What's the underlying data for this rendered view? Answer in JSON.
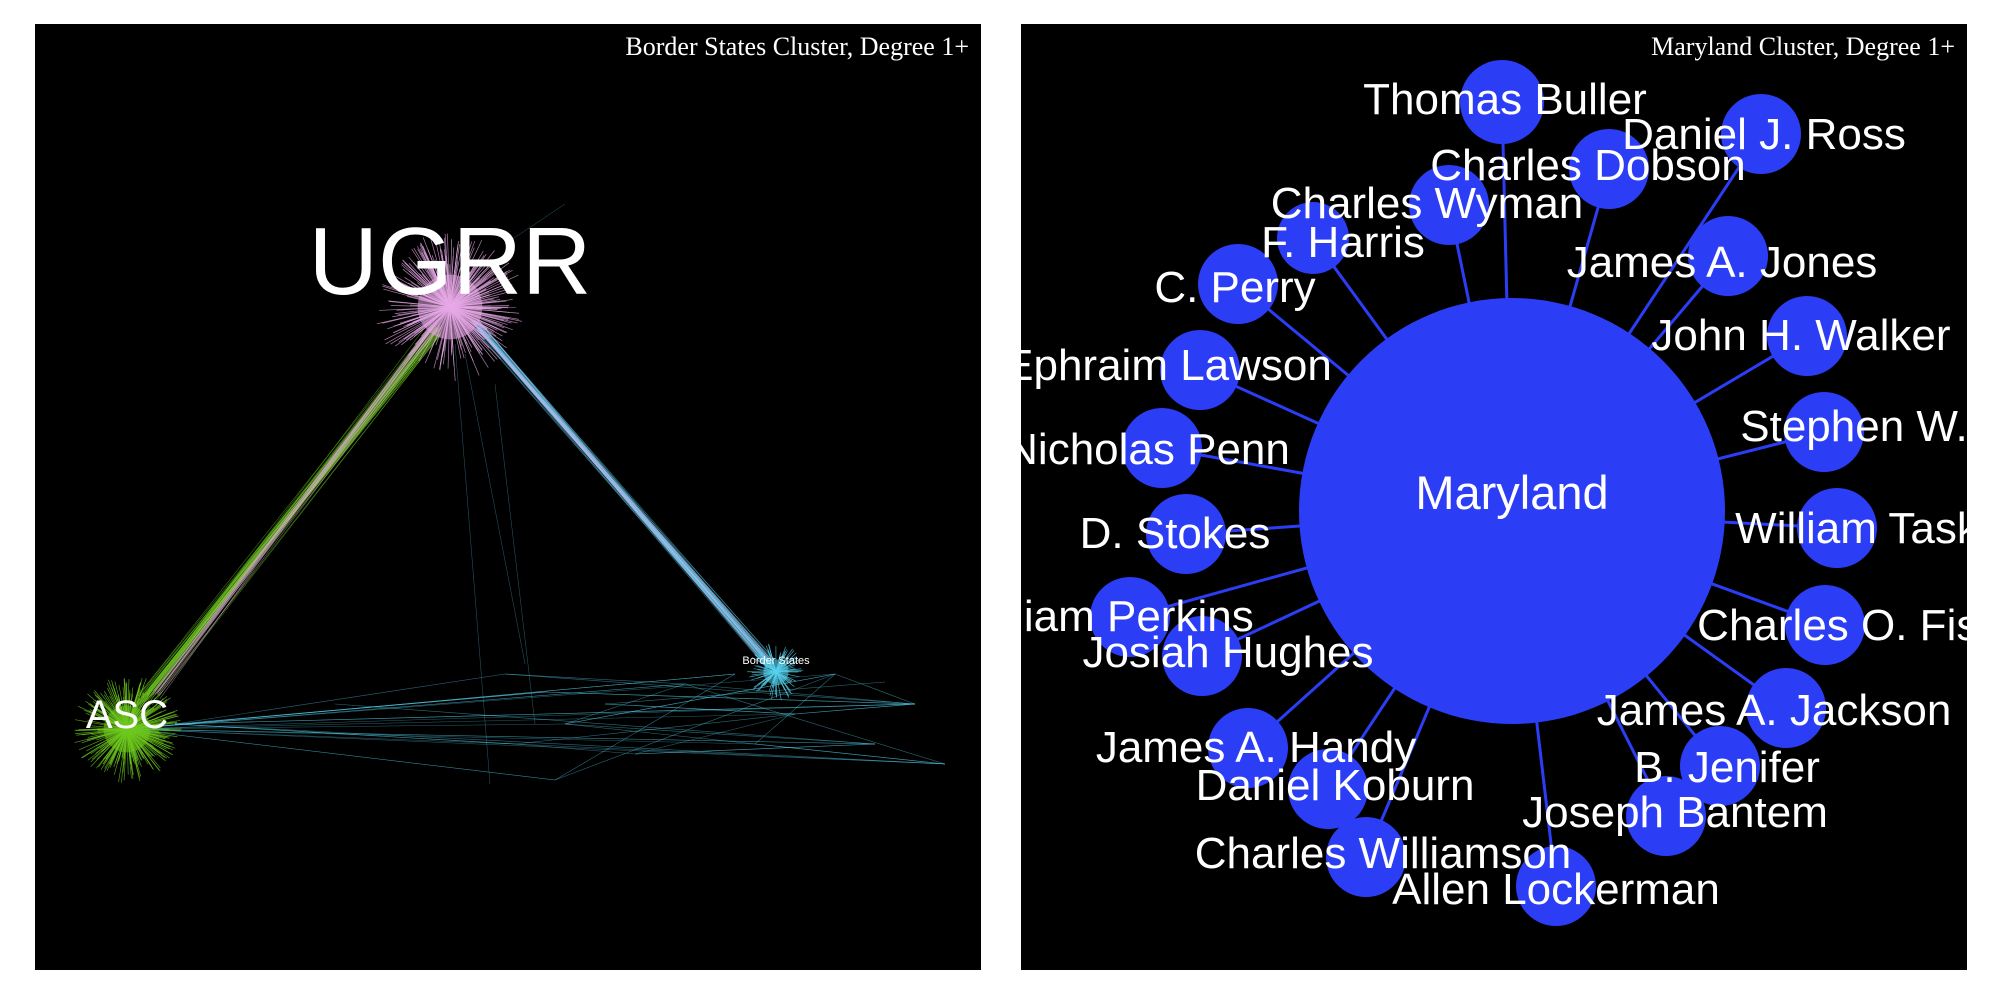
{
  "left_panel": {
    "title": "Border States Cluster, Degree 1+",
    "clusters": [
      {
        "key": "ugrr",
        "label": "UGRR",
        "color": "#e6a8e6"
      },
      {
        "key": "asc",
        "label": "ASC",
        "color": "#6ec81e"
      },
      {
        "key": "border",
        "label": "Border States",
        "color": "#55d2ee"
      }
    ]
  },
  "right_panel": {
    "title": "Maryland Cluster, Degree 1+",
    "hub_label": "Maryland",
    "node_color": "#2b3ef5",
    "nodes": [
      "Thomas Buller",
      "Daniel J. Ross",
      "Charles Dobson",
      "Charles Wyman",
      "F. Harris",
      "James A. Jones",
      "C. Perry",
      "John H. Walker",
      "Ephraim Lawson",
      "Stephen W. H",
      "Nicholas Penn",
      "William Task",
      "D. Stokes",
      "Charles O. Fish",
      "lliam Perkins",
      "Josiah Hughes",
      "James A. Jackson",
      "James A. Handy",
      "B. Jenifer",
      "Daniel Koburn",
      "Joseph Bantem",
      "Charles Williamson",
      "Allen Lockerman"
    ]
  }
}
